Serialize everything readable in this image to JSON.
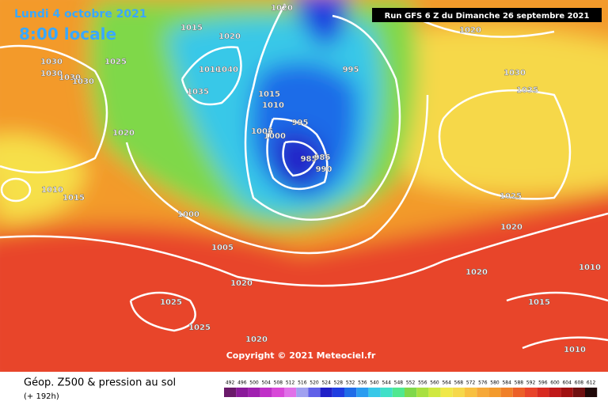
{
  "header": {
    "date": "Lundi 4 octobre 2021",
    "time": "8:00 locale",
    "run": "Run GFS 6 Z du Dimanche 26 septembre 2021"
  },
  "isobar_labels": [
    "1020",
    "1015",
    "1020",
    "1025",
    "1030",
    "1030",
    "1030",
    "1030",
    "1010",
    "1040",
    "1035",
    "995",
    "1015",
    "1010",
    "995",
    "1005",
    "1000",
    "1020",
    "985",
    "985",
    "990",
    "1010",
    "1015",
    "1000",
    "1005",
    "1020",
    "1025",
    "1025",
    "1020",
    "1020",
    "1030",
    "1035",
    "1025",
    "1020",
    "1020",
    "1010",
    "1015",
    "1010"
  ],
  "copyright": "Copyright © 2021 Meteociel.fr",
  "legend": {
    "title": "Géop. Z500 & pression au sol",
    "lead": "(+ 192h)",
    "scale": [
      492,
      496,
      500,
      504,
      508,
      512,
      516,
      520,
      524,
      528,
      532,
      536,
      540,
      544,
      548,
      552,
      556,
      560,
      564,
      568,
      572,
      576,
      580,
      584,
      588,
      592,
      596,
      600,
      604,
      608,
      612
    ]
  }
}
